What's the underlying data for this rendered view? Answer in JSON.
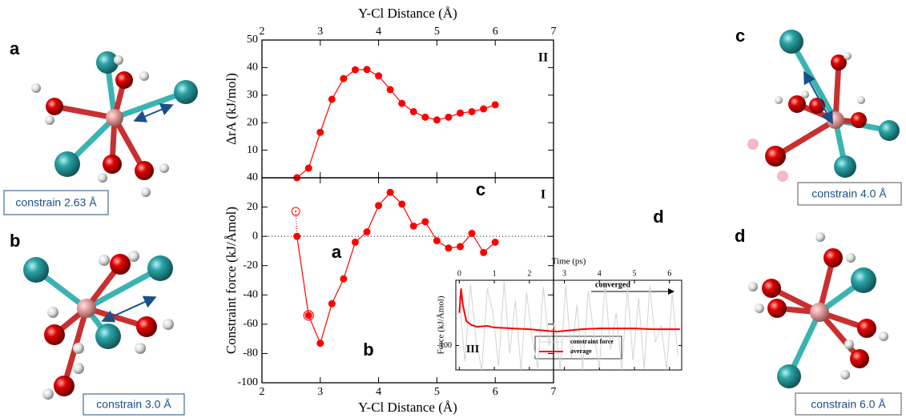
{
  "chart_data": [
    {
      "type": "line",
      "xlabel": "Y-Cl Distance (Å)",
      "ylabel": "ΔrA (kJ/mol)",
      "xlim": [
        2,
        7
      ],
      "xticks": [
        2,
        3,
        4,
        5,
        6,
        7
      ],
      "ylim": [
        0,
        50
      ],
      "yticks": [
        10,
        20,
        30,
        40,
        50
      ],
      "annotations": [
        "II"
      ],
      "series": [
        {
          "color": "#ff0000",
          "marker": "filled",
          "x": [
            2.6,
            2.8,
            3.0,
            3.2,
            3.4,
            3.6,
            3.8,
            4.0,
            4.2,
            4.4,
            4.6,
            4.8,
            5.0,
            5.2,
            5.4,
            5.6,
            5.8,
            6.0
          ],
          "values": [
            0,
            3.5,
            16.5,
            28.5,
            36,
            39.2,
            39.3,
            37,
            32,
            27,
            24,
            22,
            21,
            22,
            23.5,
            24,
            25,
            26.5
          ]
        }
      ]
    },
    {
      "type": "line",
      "xlabel": "Y-Cl Distance (Å)",
      "ylabel": "Constraint force (kJ/Åmol)",
      "xlim": [
        2,
        7
      ],
      "xticks": [
        2,
        3,
        4,
        5,
        6,
        7
      ],
      "ylim": [
        -100,
        40
      ],
      "yticks": [
        -100,
        -80,
        -60,
        -40,
        -20,
        0,
        20,
        40
      ],
      "zero_line": true,
      "annotations": [
        "I",
        "a",
        "b",
        "c",
        "d"
      ],
      "series": [
        {
          "color": "#ff0000",
          "marker": "filled",
          "x": [
            2.6,
            2.8,
            3.0,
            3.2,
            3.4,
            3.6,
            3.8,
            4.0,
            4.2,
            4.4,
            4.6,
            4.8,
            5.0,
            5.2,
            5.4,
            5.6,
            5.8,
            6.0
          ],
          "values": [
            0,
            -54,
            -73,
            -46,
            -29,
            -4,
            3,
            21,
            30,
            22,
            7,
            10,
            -3,
            -8,
            -7,
            2,
            -11,
            -4
          ]
        },
        {
          "color": "#ff0000",
          "marker": "open",
          "linestyle": "dotted",
          "x": [
            2.58,
            2.6
          ],
          "values": [
            17,
            0
          ]
        },
        {
          "color": "#ff0000",
          "marker": "ring",
          "x": [
            2.8
          ],
          "values": [
            -54
          ]
        }
      ]
    },
    {
      "type": "line",
      "xlabel": "Time (ps)",
      "ylabel": "Force (kJ/Åmol)",
      "xlim": [
        -0.1,
        6.35
      ],
      "xticks": [
        0,
        1,
        2,
        3,
        4,
        5,
        6
      ],
      "ylim": [
        -130,
        -20
      ],
      "yticks": [
        -100
      ],
      "annotations": [
        "III",
        "converged"
      ],
      "series": [
        {
          "name": "constraint force",
          "color": "#d3d3d3",
          "x": [
            0,
            0.16,
            0.32,
            0.48,
            0.64,
            0.8,
            0.96,
            1.12,
            1.28,
            1.44,
            1.6,
            1.76,
            1.92,
            2.08,
            2.24,
            2.4,
            2.56,
            2.72,
            2.88,
            3.04,
            3.2,
            3.36,
            3.52,
            3.68,
            3.84,
            4,
            4.16,
            4.32,
            4.48,
            4.64,
            4.8,
            4.96,
            5.12,
            5.28,
            5.44,
            5.6,
            5.76,
            5.92,
            6.08,
            6.24
          ],
          "values": [
            -40,
            -120,
            -25,
            -95,
            -130,
            -30,
            -60,
            -125,
            -22,
            -110,
            -45,
            -130,
            -35,
            -90,
            -128,
            -28,
            -100,
            -70,
            -130,
            -26,
            -115,
            -50,
            -130,
            -33,
            -85,
            -127,
            -24,
            -105,
            -60,
            -130,
            -30,
            -118,
            -42,
            -129,
            -27,
            -96,
            -75,
            -130,
            -36,
            -112
          ]
        },
        {
          "name": "average",
          "color": "#ff0000",
          "x": [
            0,
            0.05,
            0.1,
            0.2,
            0.35,
            0.5,
            0.8,
            1,
            1.5,
            2,
            2.5,
            2.8,
            3,
            3.5,
            4,
            4.5,
            5,
            5.5,
            6,
            6.3
          ],
          "values": [
            -60,
            -30,
            -50,
            -70,
            -75,
            -77,
            -76,
            -78,
            -79,
            -80,
            -82,
            -83,
            -82,
            -80,
            -79,
            -79,
            -79,
            -80,
            -80,
            -80
          ]
        }
      ]
    }
  ],
  "panels": [
    {
      "letter": "a",
      "caption": "constrain 2.63 Å"
    },
    {
      "letter": "b",
      "caption": "constrain 3.0 Å"
    },
    {
      "letter": "c",
      "caption": "constrain 4.0 Å"
    },
    {
      "letter": "d",
      "caption": "constrain 6.0 Å"
    }
  ]
}
